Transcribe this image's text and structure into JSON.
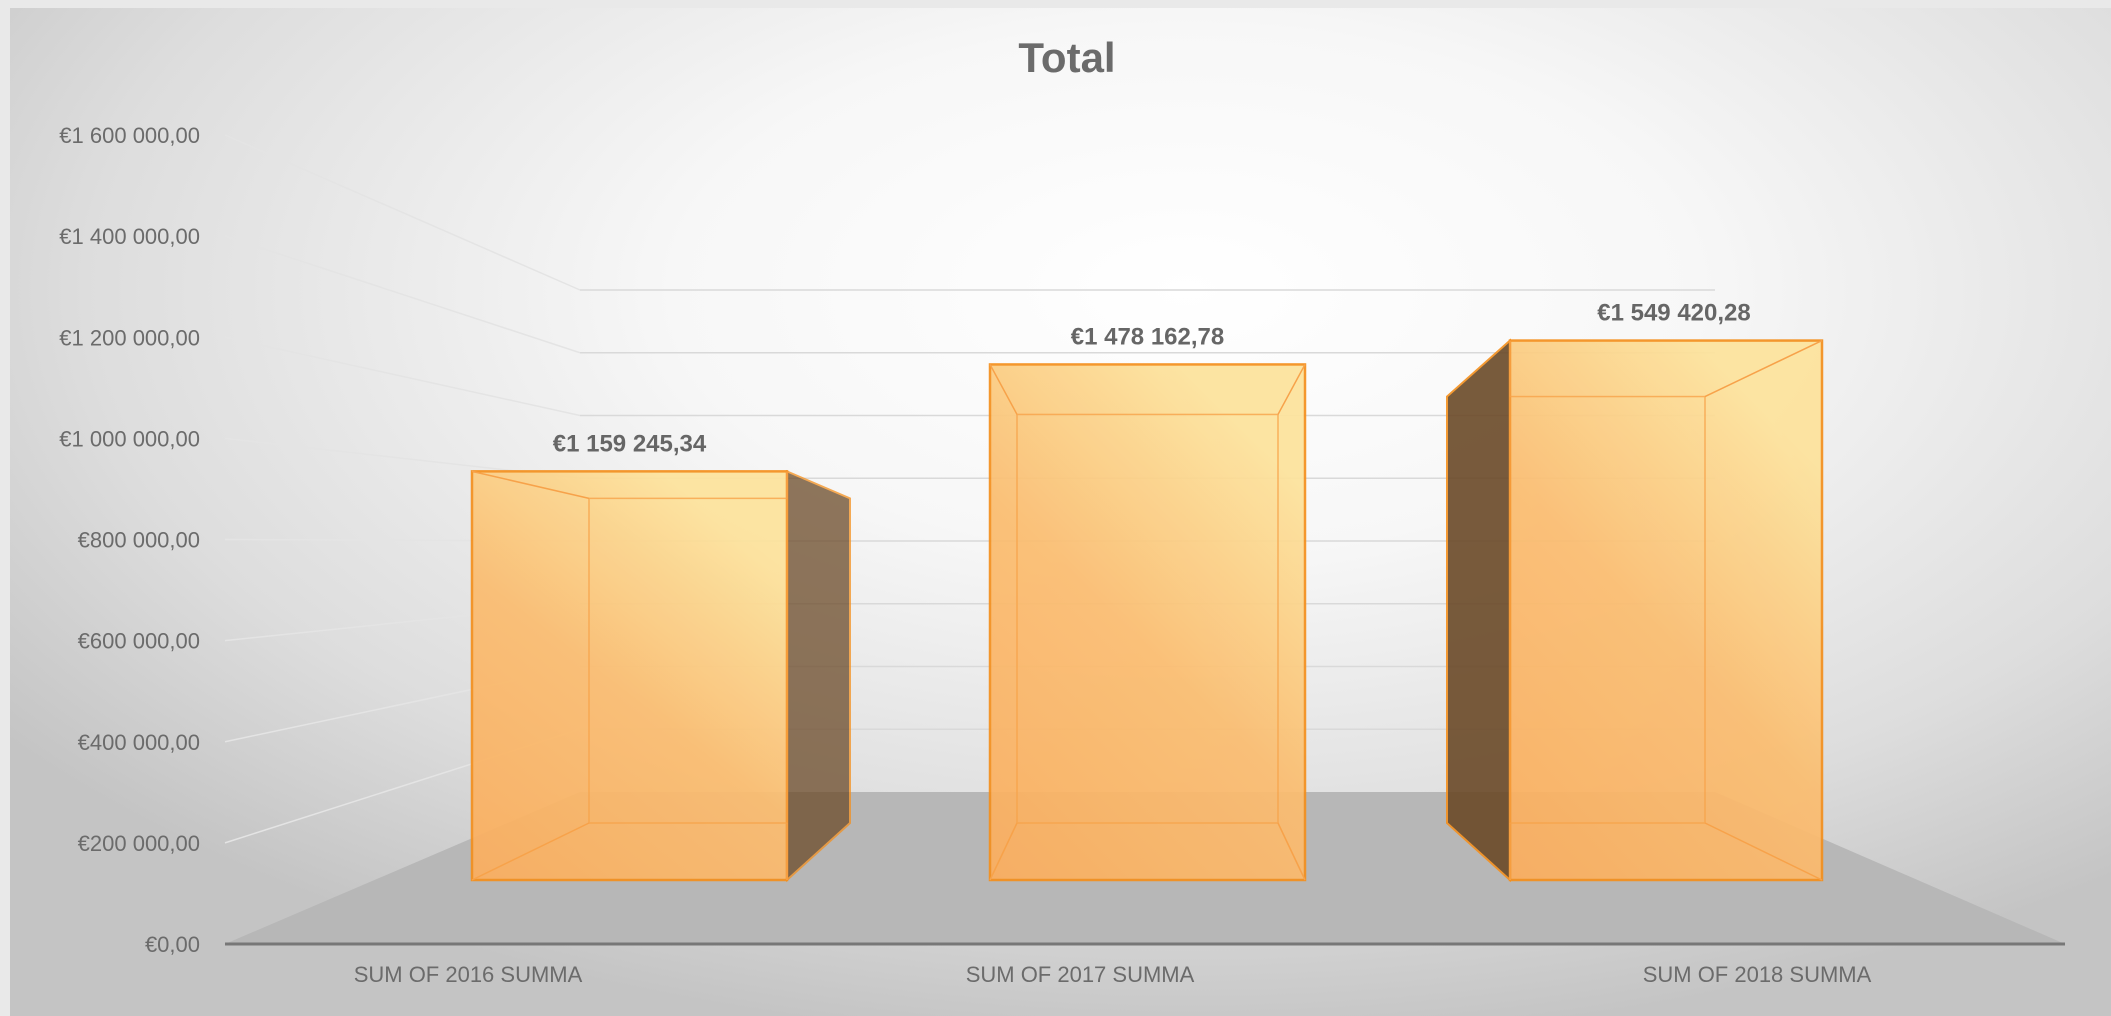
{
  "chart_data": {
    "type": "bar",
    "style": "3d-column",
    "title": "Total",
    "categories": [
      "SUM OF 2016 SUMMA",
      "SUM OF 2017 SUMMA",
      "SUM OF 2018 SUMMA"
    ],
    "values": [
      1159245.34,
      1478162.78,
      1549420.28
    ],
    "value_labels": [
      "€1 159 245,34",
      "€1 478 162,78",
      "€1 549 420,28"
    ],
    "ylim": [
      0,
      1600000
    ],
    "yticks": [
      0,
      200000,
      400000,
      600000,
      800000,
      1000000,
      1200000,
      1400000,
      1600000
    ],
    "ytick_labels": [
      "€0,00",
      "€200 000,00",
      "€400 000,00",
      "€600 000,00",
      "€800 000,00",
      "€1 000 000,00",
      "€1 200 000,00",
      "€1 400 000,00",
      "€1 600 000,00"
    ],
    "grid": true,
    "legend": "none"
  },
  "colors": {
    "bar_front": "#fbb05e",
    "bar_top": "#fde49a",
    "bar_edge": "#f4901e",
    "side_dark": "#6b4a28",
    "floor": "#b7b7b7",
    "grid": "#d9d9d9",
    "text": "#6b6b6b"
  }
}
